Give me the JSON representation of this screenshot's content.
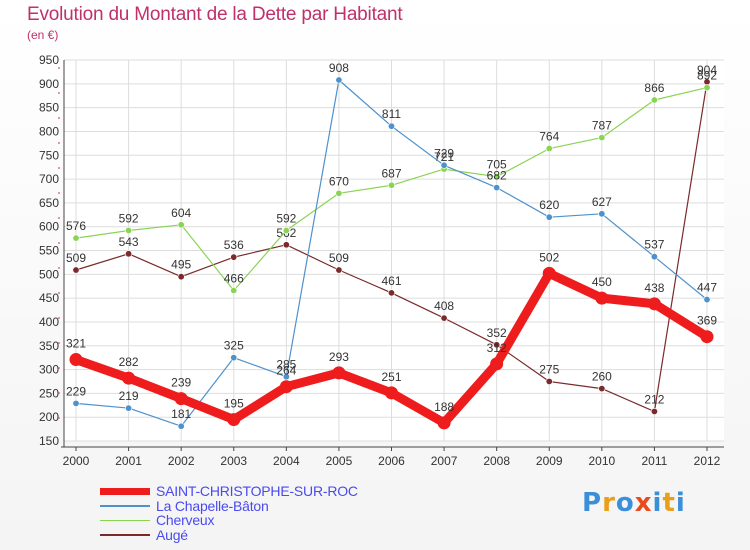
{
  "title": "Evolution du Montant de la Dette par Habitant",
  "subtitle": "(en €)",
  "logo": {
    "text": "Proxiti",
    "colors": [
      "#3a8fd8",
      "#e8a01c",
      "#3a8fd8",
      "#e84c1c",
      "#3a8fd8",
      "#e8a01c",
      "#3a8fd8"
    ]
  },
  "chart_data": {
    "type": "line",
    "title": "Evolution du Montant de la Dette par Habitant",
    "subtitle": "(en €)",
    "x": [
      "2000",
      "2001",
      "2002",
      "2003",
      "2004",
      "2005",
      "2006",
      "2007",
      "2008",
      "2009",
      "2010",
      "2011",
      "2012"
    ],
    "ylim": [
      150,
      950
    ],
    "yticks": [
      150,
      200,
      250,
      300,
      350,
      400,
      450,
      500,
      550,
      600,
      650,
      700,
      750,
      800,
      850,
      900,
      950
    ],
    "grid": true,
    "legend": "bottom-left",
    "series": [
      {
        "name": "SAINT-CHRISTOPHE-SUR-ROC",
        "color": "#ee1c1c",
        "emphasis": true,
        "values": [
          321,
          282,
          239,
          195,
          264,
          293,
          251,
          188,
          312,
          502,
          450,
          438,
          369
        ]
      },
      {
        "name": "La Chapelle-Bâton",
        "color": "#4f91cc",
        "emphasis": false,
        "values": [
          229,
          219,
          181,
          325,
          285,
          908,
          811,
          729,
          682,
          620,
          627,
          537,
          447
        ]
      },
      {
        "name": "Cherveux",
        "color": "#8ad454",
        "emphasis": false,
        "values": [
          576,
          592,
          604,
          466,
          592,
          670,
          687,
          721,
          705,
          764,
          787,
          866,
          892
        ]
      },
      {
        "name": "Augé",
        "color": "#7a2a2a",
        "emphasis": false,
        "values": [
          509,
          543,
          495,
          536,
          562,
          509,
          461,
          408,
          352,
          275,
          260,
          212,
          904
        ]
      }
    ]
  }
}
